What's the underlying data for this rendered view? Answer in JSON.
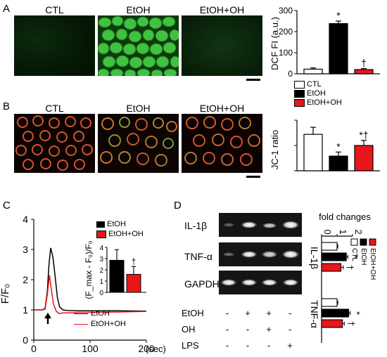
{
  "panels": {
    "a": "A",
    "b": "B",
    "c": "C",
    "d": "D"
  },
  "micrographs": {
    "titles": [
      "CTL",
      "EtOH",
      "EtOH+OH"
    ]
  },
  "legend_ab": [
    "CTL",
    "EtOH",
    "EtOH+OH"
  ],
  "legend_c_inset": [
    "EtOH",
    "EtOH+OH"
  ],
  "legend_c_lines": [
    "EtOH",
    "EtOH+OH"
  ],
  "gel": {
    "bands": [
      "IL-1β",
      "TNF-α",
      "GAPDH"
    ],
    "treatments": [
      {
        "label": "EtOH",
        "marks": [
          "-",
          "+",
          "+",
          "-"
        ]
      },
      {
        "label": "OH",
        "marks": [
          "-",
          "-",
          "+",
          "-"
        ]
      },
      {
        "label": "LPS",
        "marks": [
          "-",
          "-",
          "-",
          "+"
        ]
      }
    ]
  },
  "colors": {
    "ctl": "#ffffff",
    "etoh": "#000000",
    "etoh_oh": "#e8161b"
  },
  "chart_data": [
    {
      "type": "bar",
      "ylabel": "DCF FI (a.u.)",
      "categories": [
        "CTL",
        "EtOH",
        "EtOH+OH"
      ],
      "values": [
        22,
        238,
        20
      ],
      "errors": [
        6,
        12,
        5
      ],
      "annotations": [
        "",
        "*",
        "†"
      ],
      "ylim": [
        0,
        300
      ],
      "yticks": [
        "0",
        "100",
        "200",
        "300"
      ]
    },
    {
      "type": "bar",
      "ylabel": "JC-1 ratio",
      "categories": [
        "CTL",
        "EtOH",
        "EtOH+OH"
      ],
      "values": [
        7.2,
        2.9,
        5.0
      ],
      "errors": [
        1.4,
        0.8,
        1.0
      ],
      "annotations": [
        "",
        "*",
        "*†"
      ],
      "ylim": [
        0,
        10
      ]
    },
    {
      "type": "line",
      "xlabel": "(sec)",
      "ylabel": "F/F₀",
      "xlim": [
        0,
        200
      ],
      "ylim": [
        0,
        4
      ],
      "xticks": [
        "0",
        "100",
        "200"
      ],
      "yticks": [
        "0",
        "1",
        "2",
        "3",
        "4"
      ],
      "series": [
        {
          "name": "EtOH",
          "x": [
            0,
            15,
            20,
            24,
            27,
            30,
            34,
            38,
            42,
            46,
            52,
            60,
            80,
            100,
            150,
            200
          ],
          "y": [
            1.0,
            1.0,
            1.05,
            1.6,
            2.5,
            3.05,
            2.75,
            2.1,
            1.4,
            1.1,
            1.0,
            0.98,
            0.97,
            0.97,
            0.97,
            0.96
          ]
        },
        {
          "name": "EtOH+OH",
          "x": [
            0,
            15,
            20,
            24,
            28,
            31,
            35,
            40,
            45,
            52,
            60,
            80,
            100,
            150,
            200
          ],
          "y": [
            1.0,
            1.0,
            1.02,
            1.5,
            2.15,
            1.7,
            1.2,
            0.95,
            0.88,
            0.9,
            0.9,
            0.92,
            0.92,
            0.93,
            0.95
          ]
        }
      ],
      "arrow_x": 25
    },
    {
      "type": "bar",
      "ylabel": "(F_max - F₀)/F₀",
      "categories": [
        "EtOH",
        "EtOH+OH"
      ],
      "values": [
        2.85,
        1.6
      ],
      "errors": [
        0.95,
        0.7
      ],
      "annotations": [
        "",
        "†"
      ],
      "ylim": [
        0,
        4
      ],
      "yticks": [
        "0",
        "1",
        "2",
        "3",
        "4"
      ]
    },
    {
      "type": "bar",
      "orientation": "horizontal",
      "xlabel": "fold changes",
      "xticks": [
        "0",
        "1",
        "2"
      ],
      "xlim": [
        0,
        2
      ],
      "groups": [
        "IL-1β",
        "TNF-α"
      ],
      "series": [
        {
          "name": "CTL",
          "values": [
            1.0,
            1.0
          ],
          "errors": [
            0.05,
            0.05
          ]
        },
        {
          "name": "EtOH",
          "values": [
            1.6,
            1.75
          ],
          "errors": [
            0.1,
            0.1
          ]
        },
        {
          "name": "EtOH+OH",
          "values": [
            1.25,
            1.35
          ],
          "errors": [
            0.15,
            0.12
          ]
        }
      ],
      "annotations": [
        [
          "",
          "*",
          "†"
        ],
        [
          "",
          "*",
          "†"
        ]
      ]
    }
  ]
}
